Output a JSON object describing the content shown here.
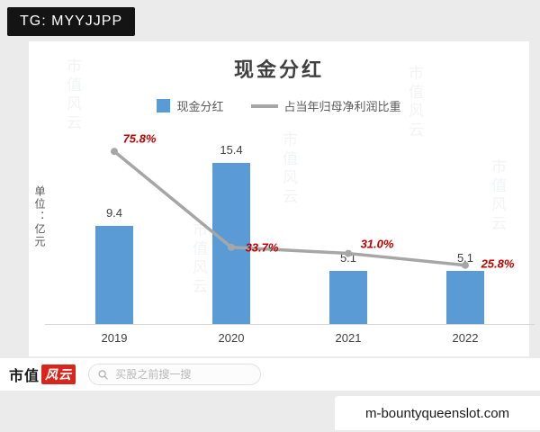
{
  "badge": {
    "text": "TG: MYYJJPP"
  },
  "watermark": {
    "text": "市值风云"
  },
  "chart_data": {
    "type": "bar",
    "title": "现金分红",
    "unit_label": "单位：亿元",
    "categories": [
      "2019",
      "2020",
      "2021",
      "2022"
    ],
    "series": [
      {
        "name": "现金分红",
        "type": "bar",
        "values": [
          9.4,
          15.4,
          5.1,
          5.1
        ],
        "color": "#5b9bd5"
      },
      {
        "name": "占当年归母净利润比重",
        "type": "line",
        "values": [
          75.8,
          33.7,
          31.0,
          25.8
        ],
        "unit": "%",
        "color": "#a6a6a6",
        "label_color": "#c00000"
      }
    ],
    "bar_value_labels": [
      "9.4",
      "15.4",
      "5.1",
      "5.1"
    ],
    "line_value_labels": [
      "75.8%",
      "33.7%",
      "31.0%",
      "25.8%"
    ],
    "bar_ylim": [
      0,
      18
    ],
    "line_ylim": [
      0,
      100
    ],
    "legend_position": "top",
    "grid": false
  },
  "footer": {
    "logo_part1": "市值",
    "logo_part2": "风云",
    "search_placeholder": "买股之前搜一搜"
  },
  "overlay": {
    "domain": "m-bountyqueenslot.com"
  }
}
